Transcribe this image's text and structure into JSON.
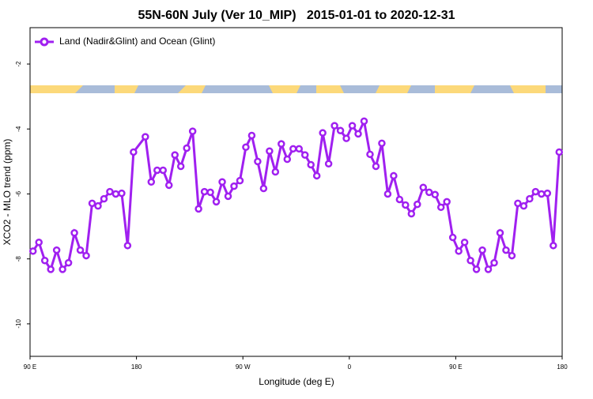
{
  "chart_data": {
    "type": "line",
    "title": "55N-60N July (Ver 10_MIP)   2015-01-01 to 2020-12-31",
    "x_label": "Longitude (deg E)",
    "y_label": "XCO2 - MLO trend (ppm)",
    "xlim": [
      90,
      540
    ],
    "ylim": [
      -11,
      -0.88
    ],
    "xticks": [
      {
        "value": 90,
        "label": "90 E"
      },
      180,
      {
        "value": 270,
        "label": "90 W"
      },
      {
        "value": 360,
        "label": "0"
      },
      {
        "value": 450,
        "label": "90 E"
      },
      {
        "value": 540,
        "label": "180"
      }
    ],
    "yticks": [
      -2,
      -4,
      -6,
      -8,
      -10
    ],
    "legend": "top-left",
    "x": [
      92.5,
      97.5,
      102.5,
      107.5,
      112.5,
      117.5,
      122.5,
      127.5,
      132.5,
      137.5,
      142.5,
      147.5,
      152.5,
      157.5,
      162.5,
      167.5,
      172.5,
      177.5,
      187.5,
      192.5,
      197.5,
      202.5,
      207.5,
      212.5,
      217.5,
      222.5,
      227.5,
      232.5,
      237.5,
      242.5,
      247.5,
      252.5,
      257.5,
      262.5,
      267.5,
      272.5,
      277.5,
      282.5,
      287.5,
      292.5,
      297.5,
      302.5,
      307.5,
      312.5,
      317.5,
      322.5,
      327.5,
      332.5,
      337.5,
      342.5,
      347.5,
      352.5,
      357.5,
      362.5,
      367.5,
      372.5,
      377.5,
      382.5,
      387.5,
      392.5,
      397.5,
      402.5,
      407.5,
      412.5,
      417.5,
      422.5,
      427.5,
      432.5,
      437.5,
      442.5,
      447.5,
      452.5,
      457.5,
      462.5,
      467.5,
      472.5,
      477.5,
      482.5,
      487.5,
      492.5,
      497.5,
      502.5,
      507.5,
      512.5,
      517.5,
      522.5,
      527.5,
      532.5,
      537.5
    ],
    "series": [
      {
        "name": "Land (Nadir&Glint) and Ocean (Glint)",
        "color": "#a020f0",
        "values": [
          -7.76,
          -7.49,
          -8.05,
          -8.32,
          -7.73,
          -8.32,
          -8.12,
          -7.2,
          -7.73,
          -7.9,
          -6.29,
          -6.37,
          -6.15,
          -5.93,
          -6.0,
          -5.98,
          -7.59,
          -4.71,
          -4.24,
          -5.63,
          -5.27,
          -5.27,
          -5.73,
          -4.8,
          -5.15,
          -4.59,
          -4.07,
          -6.46,
          -5.93,
          -5.95,
          -6.24,
          -5.63,
          -6.07,
          -5.76,
          -5.59,
          -4.56,
          -4.2,
          -5.0,
          -5.83,
          -4.68,
          -5.32,
          -4.46,
          -4.93,
          -4.61,
          -4.61,
          -4.8,
          -5.1,
          -5.44,
          -4.12,
          -5.07,
          -3.9,
          -4.05,
          -4.29,
          -3.9,
          -4.15,
          -3.76,
          -4.78,
          -5.15,
          -4.44,
          -6.0,
          -5.44,
          -6.17,
          -6.34,
          -6.61,
          -6.32,
          -5.8,
          -5.95,
          -6.02,
          -6.41,
          -6.24,
          -7.34,
          -7.76,
          -7.49,
          -8.05,
          -8.32,
          -7.73,
          -8.32,
          -8.12,
          -7.2,
          -7.73,
          -7.9,
          -6.29,
          -6.37,
          -6.15,
          -5.93,
          -6.0,
          -5.98,
          -7.59,
          -4.71
        ]
      }
    ]
  }
}
